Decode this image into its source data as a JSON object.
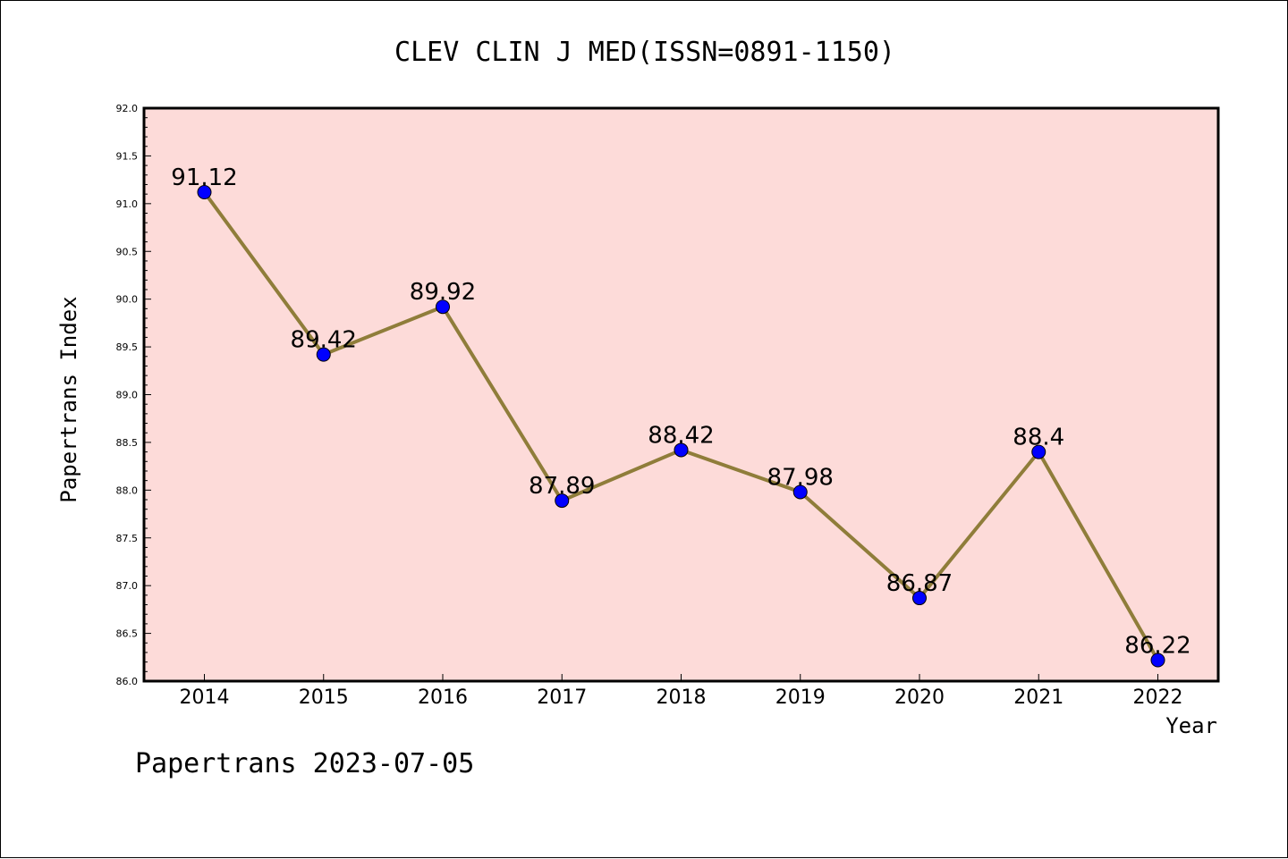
{
  "chart_data": {
    "type": "line",
    "title": "CLEV CLIN J MED(ISSN=0891-1150)",
    "xlabel": "Year",
    "ylabel": "Papertrans Index",
    "categories": [
      "2014",
      "2015",
      "2016",
      "2017",
      "2018",
      "2019",
      "2020",
      "2021",
      "2022"
    ],
    "values": [
      91.12,
      89.42,
      89.92,
      87.89,
      88.42,
      87.98,
      86.87,
      88.4,
      86.22
    ],
    "data_labels": [
      "91.12",
      "89.42",
      "89.92",
      "87.89",
      "88.42",
      "87.98",
      "86.87",
      "88.4",
      "86.22"
    ],
    "ylim": [
      86.0,
      92.0
    ],
    "yticks": [
      "86.0",
      "86.5",
      "87.0",
      "87.5",
      "88.0",
      "88.5",
      "89.0",
      "89.5",
      "90.0",
      "90.5",
      "91.0",
      "91.5",
      "92.0"
    ],
    "grid": false,
    "plot_background": "#fddbd9",
    "line_color": "#8f7d3a",
    "marker_color": "#0000ff"
  },
  "footer": "Papertrans 2023-07-05"
}
